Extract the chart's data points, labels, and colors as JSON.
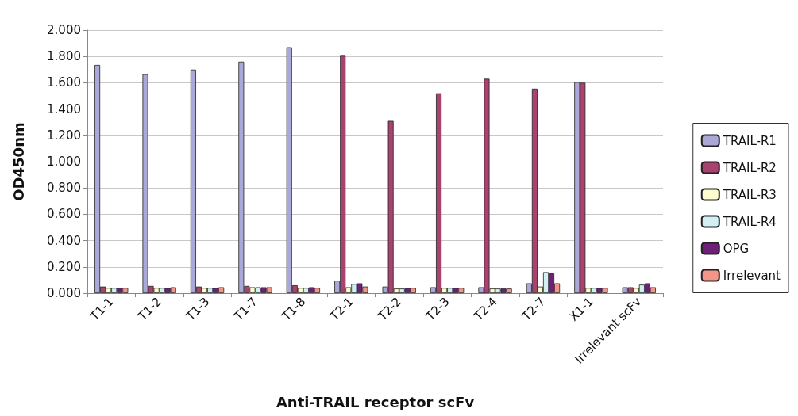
{
  "chart_data": {
    "type": "bar",
    "xlabel": "Anti-TRAIL receptor scFv",
    "ylabel": "OD450nm",
    "categories": [
      "T1-1",
      "T1-2",
      "T1-3",
      "T1-7",
      "T1-8",
      "T2-1",
      "T2-2",
      "T2-3",
      "T2-4",
      "T2-7",
      "X1-1",
      "Irrelevant scFv"
    ],
    "series": [
      {
        "name": "TRAIL-R1",
        "color": "#aaa8d8",
        "values": [
          1.735,
          1.665,
          1.7,
          1.76,
          1.87,
          0.095,
          0.05,
          0.045,
          0.045,
          0.075,
          1.605,
          0.045
        ]
      },
      {
        "name": "TRAIL-R2",
        "color": "#a8426f",
        "values": [
          0.05,
          0.055,
          0.05,
          0.055,
          0.06,
          1.805,
          1.31,
          1.52,
          1.63,
          1.555,
          1.6,
          0.045
        ]
      },
      {
        "name": "TRAIL-R3",
        "color": "#fcfccc",
        "values": [
          0.04,
          0.04,
          0.04,
          0.045,
          0.04,
          0.045,
          0.035,
          0.04,
          0.035,
          0.05,
          0.04,
          0.04
        ]
      },
      {
        "name": "TRAIL-R4",
        "color": "#d2f0f4",
        "values": [
          0.04,
          0.04,
          0.04,
          0.045,
          0.04,
          0.07,
          0.035,
          0.04,
          0.035,
          0.16,
          0.04,
          0.065
        ]
      },
      {
        "name": "OPG",
        "color": "#6e1f78",
        "values": [
          0.04,
          0.04,
          0.04,
          0.045,
          0.045,
          0.075,
          0.04,
          0.04,
          0.035,
          0.15,
          0.04,
          0.075
        ]
      },
      {
        "name": "Irrelevant",
        "color": "#f4958a",
        "values": [
          0.04,
          0.045,
          0.045,
          0.045,
          0.04,
          0.05,
          0.04,
          0.04,
          0.035,
          0.075,
          0.04,
          0.045
        ]
      }
    ],
    "ylim": [
      0,
      2
    ],
    "yticks": [
      {
        "value": 0,
        "label": "0.000"
      },
      {
        "value": 0.2,
        "label": "0.200"
      },
      {
        "value": 0.4,
        "label": "0.400"
      },
      {
        "value": 0.6,
        "label": "0.600"
      },
      {
        "value": 0.8,
        "label": "0.800"
      },
      {
        "value": 1,
        "label": "1.000"
      },
      {
        "value": 1.2,
        "label": "1.200"
      },
      {
        "value": 1.4,
        "label": "1.400"
      },
      {
        "value": 1.6,
        "label": "1.600"
      },
      {
        "value": 1.8,
        "label": "1.800"
      },
      {
        "value": 2,
        "label": "2.000"
      }
    ],
    "grid": "y",
    "legend": "right"
  }
}
